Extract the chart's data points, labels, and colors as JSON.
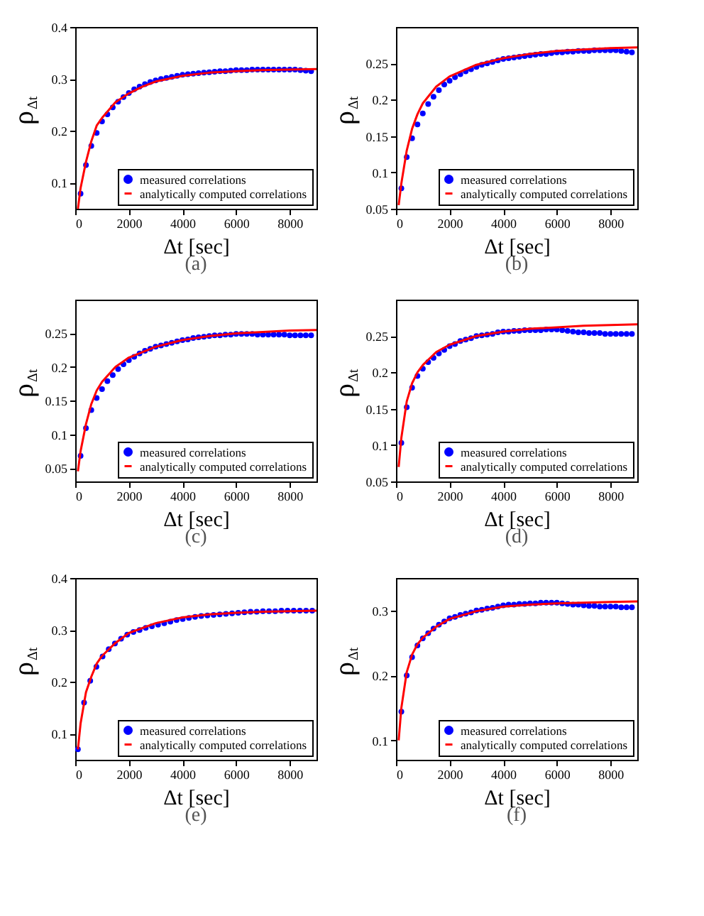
{
  "chart_data": [
    {
      "type": "scatter",
      "xlabel": "Δt [sec]",
      "ylabel": "ρ$_{Δt}$",
      "annotations": [
        "(a)"
      ],
      "xlim": [
        0,
        9000
      ],
      "xticks": [
        0,
        2000,
        4000,
        6000,
        8000
      ],
      "ylim": [
        0.05,
        0.4
      ],
      "yticks": [
        0.1,
        0.2,
        0.3,
        0.4
      ],
      "grid": false,
      "legend": "bottom right",
      "marker": "circle",
      "line_style": "solid",
      "series": [
        {
          "name": "measured correlations",
          "type": "scatter",
          "color": "#0000ff",
          "x": [
            200,
            400,
            600,
            800,
            1000,
            1200,
            1400,
            1600,
            1800,
            2000,
            2200,
            2400,
            2600,
            2800,
            3000,
            3200,
            3400,
            3600,
            3800,
            4000,
            4200,
            4400,
            4600,
            4800,
            5000,
            5200,
            5400,
            5600,
            5800,
            6000,
            6200,
            6400,
            6600,
            6800,
            7000,
            7200,
            7400,
            7600,
            7800,
            8000,
            8200,
            8400,
            8600,
            8800
          ],
          "values": [
            0.079,
            0.134,
            0.171,
            0.196,
            0.218,
            0.232,
            0.245,
            0.256,
            0.265,
            0.273,
            0.28,
            0.285,
            0.29,
            0.294,
            0.297,
            0.3,
            0.302,
            0.304,
            0.306,
            0.308,
            0.309,
            0.31,
            0.311,
            0.312,
            0.313,
            0.314,
            0.315,
            0.315,
            0.316,
            0.317,
            0.317,
            0.317,
            0.318,
            0.318,
            0.318,
            0.318,
            0.318,
            0.318,
            0.318,
            0.318,
            0.318,
            0.317,
            0.316,
            0.315
          ]
        },
        {
          "name": "analytically computed correlations",
          "type": "line",
          "marker": "none",
          "color": "#ff0000",
          "x": [
            100,
            200,
            400,
            600,
            800,
            1000,
            1500,
            2000,
            2500,
            3000,
            4000,
            5000,
            6000,
            7000,
            8000,
            9000
          ],
          "values": [
            0.05,
            0.09,
            0.14,
            0.18,
            0.21,
            0.225,
            0.255,
            0.272,
            0.285,
            0.295,
            0.306,
            0.312,
            0.315,
            0.317,
            0.318,
            0.319
          ]
        }
      ]
    },
    {
      "type": "scatter",
      "xlabel": "Δt [sec]",
      "ylabel": "ρ$_{Δt}$",
      "annotations": [
        "(b)"
      ],
      "xlim": [
        0,
        9000
      ],
      "xticks": [
        0,
        2000,
        4000,
        6000,
        8000
      ],
      "ylim": [
        0.05,
        0.3
      ],
      "yticks": [
        0.05,
        0.1,
        0.15,
        0.2,
        0.25
      ],
      "grid": false,
      "legend": "bottom right",
      "marker": "circle",
      "line_style": "solid",
      "series": [
        {
          "name": "measured correlations",
          "type": "scatter",
          "color": "#0000ff",
          "x": [
            200,
            400,
            600,
            800,
            1000,
            1200,
            1400,
            1600,
            1800,
            2000,
            2200,
            2400,
            2600,
            2800,
            3000,
            3200,
            3400,
            3600,
            3800,
            4000,
            4200,
            4400,
            4600,
            4800,
            5000,
            5200,
            5400,
            5600,
            5800,
            6000,
            6200,
            6400,
            6600,
            6800,
            7000,
            7200,
            7400,
            7600,
            7800,
            8000,
            8200,
            8400,
            8600,
            8800
          ],
          "values": [
            0.078,
            0.121,
            0.147,
            0.166,
            0.181,
            0.194,
            0.204,
            0.213,
            0.221,
            0.226,
            0.231,
            0.235,
            0.239,
            0.242,
            0.245,
            0.248,
            0.25,
            0.252,
            0.254,
            0.256,
            0.257,
            0.258,
            0.259,
            0.26,
            0.261,
            0.262,
            0.263,
            0.263,
            0.264,
            0.265,
            0.265,
            0.266,
            0.266,
            0.267,
            0.267,
            0.267,
            0.268,
            0.268,
            0.268,
            0.268,
            0.268,
            0.267,
            0.266,
            0.265
          ]
        },
        {
          "name": "analytically computed correlations",
          "type": "line",
          "color": "#ff0000",
          "x": [
            100,
            200,
            400,
            600,
            800,
            1000,
            1500,
            2000,
            3000,
            4000,
            5000,
            6000,
            7000,
            8000,
            9000
          ],
          "marker": "none",
          "values": [
            0.055,
            0.085,
            0.13,
            0.16,
            0.18,
            0.195,
            0.218,
            0.232,
            0.248,
            0.257,
            0.263,
            0.267,
            0.269,
            0.271,
            0.272
          ]
        }
      ]
    },
    {
      "type": "scatter",
      "xlabel": "Δt [sec]",
      "ylabel": "ρ$_{Δt}$",
      "annotations": [
        "(c)"
      ],
      "xlim": [
        0,
        9000
      ],
      "xticks": [
        0,
        2000,
        4000,
        6000,
        8000
      ],
      "ylim": [
        0.03,
        0.3
      ],
      "yticks": [
        0.05,
        0.1,
        0.15,
        0.2,
        0.25
      ],
      "grid": false,
      "legend": "bottom right",
      "marker": "circle",
      "line_style": "solid",
      "series": [
        {
          "name": "measured correlations",
          "type": "scatter",
          "color": "#0000ff",
          "x": [
            200,
            400,
            600,
            800,
            1000,
            1200,
            1400,
            1600,
            1800,
            2000,
            2200,
            2400,
            2600,
            2800,
            3000,
            3200,
            3400,
            3600,
            3800,
            4000,
            4200,
            4400,
            4600,
            4800,
            5000,
            5200,
            5400,
            5600,
            5800,
            6000,
            6200,
            6400,
            6600,
            6800,
            7000,
            7200,
            7400,
            7600,
            7800,
            8000,
            8200,
            8400,
            8600,
            8800
          ],
          "values": [
            0.068,
            0.109,
            0.136,
            0.154,
            0.167,
            0.179,
            0.188,
            0.197,
            0.204,
            0.21,
            0.215,
            0.22,
            0.224,
            0.227,
            0.23,
            0.232,
            0.234,
            0.236,
            0.238,
            0.24,
            0.241,
            0.243,
            0.244,
            0.245,
            0.246,
            0.247,
            0.247,
            0.248,
            0.248,
            0.249,
            0.249,
            0.249,
            0.249,
            0.248,
            0.248,
            0.248,
            0.248,
            0.248,
            0.248,
            0.247,
            0.247,
            0.247,
            0.247,
            0.247
          ]
        },
        {
          "name": "analytically computed correlations",
          "type": "line",
          "color": "#ff0000",
          "x": [
            100,
            200,
            400,
            600,
            800,
            1000,
            1500,
            2000,
            3000,
            4000,
            5000,
            6000,
            7000,
            8000,
            9000
          ],
          "marker": "none",
          "values": [
            0.045,
            0.075,
            0.115,
            0.145,
            0.165,
            0.178,
            0.2,
            0.214,
            0.23,
            0.24,
            0.246,
            0.25,
            0.252,
            0.254,
            0.255
          ]
        }
      ]
    },
    {
      "type": "scatter",
      "xlabel": "Δt [sec]",
      "ylabel": "ρ$_{Δt}$",
      "annotations": [
        "(d)"
      ],
      "xlim": [
        0,
        9000
      ],
      "xticks": [
        0,
        2000,
        4000,
        6000,
        8000
      ],
      "ylim": [
        0.05,
        0.3
      ],
      "yticks": [
        0.05,
        0.1,
        0.15,
        0.2,
        0.25
      ],
      "grid": false,
      "legend": "bottom right",
      "marker": "circle",
      "line_style": "solid",
      "series": [
        {
          "name": "measured correlations",
          "type": "scatter",
          "color": "#0000ff",
          "x": [
            200,
            400,
            600,
            800,
            1000,
            1200,
            1400,
            1600,
            1800,
            2000,
            2200,
            2400,
            2600,
            2800,
            3000,
            3200,
            3400,
            3600,
            3800,
            4000,
            4200,
            4400,
            4600,
            4800,
            5000,
            5200,
            5400,
            5600,
            5800,
            6000,
            6200,
            6400,
            6600,
            6800,
            7000,
            7200,
            7400,
            7600,
            7800,
            8000,
            8200,
            8400,
            8600,
            8800
          ],
          "values": [
            0.103,
            0.152,
            0.179,
            0.195,
            0.205,
            0.214,
            0.22,
            0.226,
            0.231,
            0.236,
            0.239,
            0.243,
            0.245,
            0.247,
            0.25,
            0.251,
            0.252,
            0.253,
            0.255,
            0.256,
            0.256,
            0.257,
            0.257,
            0.258,
            0.258,
            0.258,
            0.258,
            0.259,
            0.259,
            0.259,
            0.258,
            0.257,
            0.256,
            0.255,
            0.255,
            0.254,
            0.254,
            0.254,
            0.253,
            0.253,
            0.253,
            0.253,
            0.253,
            0.253
          ]
        },
        {
          "name": "analytically computed correlations",
          "type": "line",
          "color": "#ff0000",
          "x": [
            100,
            200,
            400,
            600,
            800,
            1000,
            1500,
            2000,
            3000,
            4000,
            5000,
            6000,
            7000,
            8000,
            9000
          ],
          "marker": "none",
          "values": [
            0.07,
            0.11,
            0.16,
            0.185,
            0.2,
            0.21,
            0.228,
            0.238,
            0.25,
            0.256,
            0.26,
            0.262,
            0.264,
            0.265,
            0.266
          ]
        }
      ]
    },
    {
      "type": "scatter",
      "xlabel": "Δt [sec]",
      "ylabel": "ρ$_{Δt}$",
      "annotations": [
        "(e)"
      ],
      "xlim": [
        0,
        9000
      ],
      "xticks": [
        0,
        2000,
        4000,
        6000,
        8000
      ],
      "ylim": [
        0.05,
        0.4
      ],
      "yticks": [
        0.1,
        0.2,
        0.3,
        0.4
      ],
      "grid": false,
      "legend": "bottom right",
      "marker": "circle",
      "line_style": "solid",
      "series": [
        {
          "name": "measured correlations",
          "type": "scatter",
          "color": "#0000ff",
          "x": [
            100,
            330,
            560,
            790,
            1020,
            1250,
            1480,
            1710,
            1940,
            2170,
            2400,
            2630,
            2860,
            3090,
            3320,
            3550,
            3780,
            4010,
            4240,
            4470,
            4700,
            4930,
            5160,
            5390,
            5620,
            5850,
            6080,
            6310,
            6540,
            6770,
            7000,
            7230,
            7460,
            7690,
            7920,
            8150,
            8380,
            8610,
            8840
          ],
          "values": [
            0.07,
            0.16,
            0.202,
            0.229,
            0.249,
            0.263,
            0.274,
            0.283,
            0.291,
            0.296,
            0.3,
            0.304,
            0.307,
            0.31,
            0.313,
            0.316,
            0.319,
            0.321,
            0.323,
            0.325,
            0.327,
            0.328,
            0.329,
            0.33,
            0.331,
            0.332,
            0.333,
            0.334,
            0.335,
            0.335,
            0.336,
            0.336,
            0.336,
            0.337,
            0.337,
            0.337,
            0.337,
            0.337,
            0.337
          ]
        },
        {
          "name": "analytically computed correlations",
          "type": "line",
          "color": "#ff0000",
          "x": [
            100,
            200,
            400,
            600,
            800,
            1000,
            1500,
            2000,
            3000,
            4000,
            5000,
            6000,
            7000,
            8000,
            9000
          ],
          "marker": "none",
          "values": [
            0.07,
            0.12,
            0.18,
            0.21,
            0.235,
            0.25,
            0.275,
            0.294,
            0.313,
            0.324,
            0.33,
            0.333,
            0.335,
            0.336,
            0.337
          ]
        }
      ]
    },
    {
      "type": "scatter",
      "xlabel": "Δt [sec]",
      "ylabel": "ρ$_{Δt}$",
      "annotations": [
        "(f)"
      ],
      "xlim": [
        0,
        9000
      ],
      "xticks": [
        0,
        2000,
        4000,
        6000,
        8000
      ],
      "ylim": [
        0.07,
        0.35
      ],
      "yticks": [
        0.1,
        0.2,
        0.3
      ],
      "grid": false,
      "legend": "bottom right",
      "marker": "circle",
      "line_style": "solid",
      "series": [
        {
          "name": "measured correlations",
          "type": "scatter",
          "color": "#0000ff",
          "x": [
            200,
            400,
            600,
            800,
            1000,
            1200,
            1400,
            1600,
            1800,
            2000,
            2200,
            2400,
            2600,
            2800,
            3000,
            3200,
            3400,
            3600,
            3800,
            4000,
            4200,
            4400,
            4600,
            4800,
            5000,
            5200,
            5400,
            5600,
            5800,
            6000,
            6200,
            6400,
            6600,
            6800,
            7000,
            7200,
            7400,
            7600,
            7800,
            8000,
            8200,
            8400,
            8600,
            8800
          ],
          "values": [
            0.144,
            0.2,
            0.228,
            0.246,
            0.257,
            0.265,
            0.272,
            0.278,
            0.283,
            0.288,
            0.29,
            0.293,
            0.295,
            0.297,
            0.3,
            0.301,
            0.303,
            0.304,
            0.306,
            0.308,
            0.309,
            0.309,
            0.31,
            0.31,
            0.311,
            0.311,
            0.312,
            0.312,
            0.312,
            0.312,
            0.311,
            0.31,
            0.309,
            0.309,
            0.308,
            0.307,
            0.307,
            0.306,
            0.306,
            0.306,
            0.306,
            0.305,
            0.305,
            0.305
          ]
        },
        {
          "name": "analytically computed correlations",
          "type": "line",
          "color": "#ff0000",
          "x": [
            100,
            200,
            400,
            600,
            800,
            1000,
            1500,
            2000,
            3000,
            4000,
            5000,
            6000,
            7000,
            8000,
            9000
          ],
          "marker": "none",
          "values": [
            0.1,
            0.15,
            0.205,
            0.232,
            0.248,
            0.258,
            0.275,
            0.287,
            0.299,
            0.306,
            0.309,
            0.311,
            0.312,
            0.313,
            0.314
          ]
        }
      ]
    }
  ]
}
